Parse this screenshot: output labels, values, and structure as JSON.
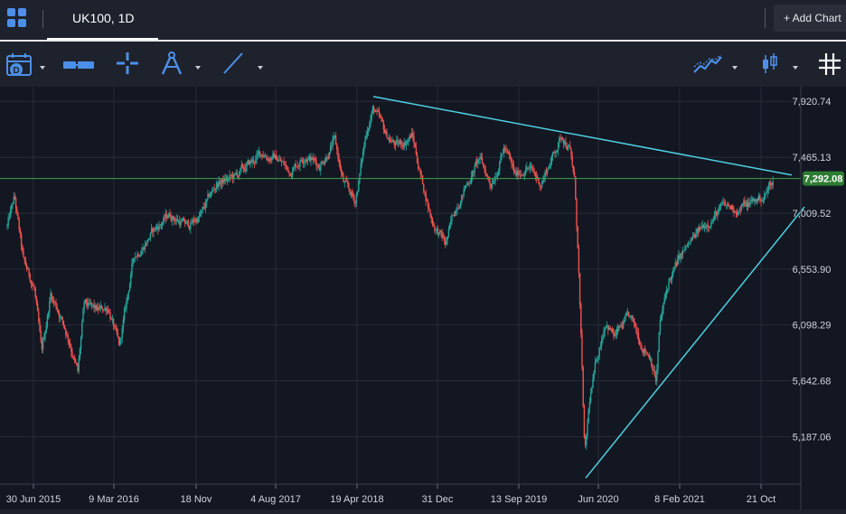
{
  "header": {
    "tab_label": "UK100, 1D",
    "add_chart_label": "+ Add Chart"
  },
  "toolbar": {
    "tools": [
      {
        "name": "date-range-icon",
        "has_dropdown": true
      },
      {
        "name": "measure-icon",
        "has_dropdown": false
      },
      {
        "name": "crosshair-icon",
        "has_dropdown": false
      },
      {
        "name": "compass-icon",
        "has_dropdown": true
      },
      {
        "name": "trendline-icon",
        "has_dropdown": true
      },
      {
        "name": "indicators-icon",
        "has_dropdown": true
      },
      {
        "name": "candlestick-icon",
        "has_dropdown": true
      },
      {
        "name": "grid-icon",
        "has_dropdown": false
      }
    ]
  },
  "colors": {
    "background": "#131722",
    "up_candle": "#26a69a",
    "down_candle": "#ef5350",
    "trendline": "#4dd0e1",
    "price_line": "#3fa34d",
    "accent": "#2962ff"
  },
  "chart_data": {
    "type": "candlestick",
    "symbol": "UK100",
    "interval": "1D",
    "x_ticks": [
      "30 Jun 2015",
      "9 Mar 2016",
      "18 Nov",
      "4 Aug 2017",
      "19 Apr 2018",
      "31 Dec",
      "13 Sep 2019",
      "Jun 2020",
      "8 Feb 2021",
      "21 Oct"
    ],
    "y_ticks": [
      "7,920.74",
      "7,465.13",
      "7,009.52",
      "6,553.90",
      "6,098.29",
      "5,642.68",
      "5,187.06"
    ],
    "y_tick_values": [
      7920.74,
      7465.13,
      7009.52,
      6553.9,
      6098.29,
      5642.68,
      5187.06
    ],
    "current_price_label": "7,292.08",
    "current_price": 7292.08,
    "ylim": [
      4800,
      8040
    ],
    "grid": true,
    "path_anchors": [
      {
        "t": 0,
        "v": 6900
      },
      {
        "t": 8,
        "v": 7130
      },
      {
        "t": 18,
        "v": 6600
      },
      {
        "t": 30,
        "v": 6400
      },
      {
        "t": 38,
        "v": 5850
      },
      {
        "t": 48,
        "v": 6350
      },
      {
        "t": 58,
        "v": 6200
      },
      {
        "t": 65,
        "v": 6050
      },
      {
        "t": 70,
        "v": 5950
      },
      {
        "t": 78,
        "v": 5700
      },
      {
        "t": 85,
        "v": 6250
      },
      {
        "t": 100,
        "v": 6200
      },
      {
        "t": 112,
        "v": 6250
      },
      {
        "t": 124,
        "v": 5900
      },
      {
        "t": 140,
        "v": 6650
      },
      {
        "t": 160,
        "v": 6850
      },
      {
        "t": 180,
        "v": 7000
      },
      {
        "t": 200,
        "v": 6900
      },
      {
        "t": 215,
        "v": 7000
      },
      {
        "t": 232,
        "v": 7250
      },
      {
        "t": 252,
        "v": 7300
      },
      {
        "t": 268,
        "v": 7400
      },
      {
        "t": 282,
        "v": 7500
      },
      {
        "t": 300,
        "v": 7450
      },
      {
        "t": 312,
        "v": 7350
      },
      {
        "t": 330,
        "v": 7500
      },
      {
        "t": 345,
        "v": 7400
      },
      {
        "t": 362,
        "v": 7600
      },
      {
        "t": 372,
        "v": 7250
      },
      {
        "t": 385,
        "v": 7100
      },
      {
        "t": 398,
        "v": 7700
      },
      {
        "t": 405,
        "v": 7870
      },
      {
        "t": 418,
        "v": 7650
      },
      {
        "t": 432,
        "v": 7550
      },
      {
        "t": 448,
        "v": 7650
      },
      {
        "t": 458,
        "v": 7300
      },
      {
        "t": 470,
        "v": 6950
      },
      {
        "t": 485,
        "v": 6750
      },
      {
        "t": 498,
        "v": 7100
      },
      {
        "t": 512,
        "v": 7300
      },
      {
        "t": 522,
        "v": 7450
      },
      {
        "t": 535,
        "v": 7250
      },
      {
        "t": 550,
        "v": 7550
      },
      {
        "t": 562,
        "v": 7300
      },
      {
        "t": 575,
        "v": 7400
      },
      {
        "t": 590,
        "v": 7250
      },
      {
        "t": 605,
        "v": 7500
      },
      {
        "t": 614,
        "v": 7650
      },
      {
        "t": 622,
        "v": 7550
      },
      {
        "t": 628,
        "v": 7250
      },
      {
        "t": 632,
        "v": 6600
      },
      {
        "t": 636,
        "v": 5700
      },
      {
        "t": 639,
        "v": 5000
      },
      {
        "t": 644,
        "v": 5450
      },
      {
        "t": 652,
        "v": 5800
      },
      {
        "t": 662,
        "v": 6150
      },
      {
        "t": 672,
        "v": 6000
      },
      {
        "t": 688,
        "v": 6150
      },
      {
        "t": 702,
        "v": 5950
      },
      {
        "t": 712,
        "v": 5850
      },
      {
        "t": 718,
        "v": 5650
      },
      {
        "t": 722,
        "v": 6100
      },
      {
        "t": 732,
        "v": 6450
      },
      {
        "t": 745,
        "v": 6650
      },
      {
        "t": 760,
        "v": 6800
      },
      {
        "t": 775,
        "v": 6950
      },
      {
        "t": 792,
        "v": 7050
      },
      {
        "t": 810,
        "v": 7050
      },
      {
        "t": 825,
        "v": 7100
      },
      {
        "t": 838,
        "v": 7150
      },
      {
        "t": 848,
        "v": 7290
      }
    ],
    "trendlines": [
      {
        "name": "upper-resistance",
        "from_t": 405,
        "from_v": 7960,
        "to_t": 868,
        "to_v": 7320
      },
      {
        "name": "lower-support",
        "from_t": 640,
        "from_v": 4850,
        "to_t": 882,
        "to_v": 7060
      }
    ]
  }
}
